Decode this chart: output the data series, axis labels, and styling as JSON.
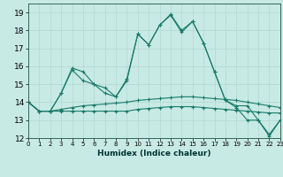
{
  "title": "",
  "xlabel": "Humidex (Indice chaleur)",
  "xlim": [
    0,
    23
  ],
  "ylim": [
    12,
    19.5
  ],
  "yticks": [
    12,
    13,
    14,
    15,
    16,
    17,
    18,
    19
  ],
  "xticks": [
    0,
    1,
    2,
    3,
    4,
    5,
    6,
    7,
    8,
    9,
    10,
    11,
    12,
    13,
    14,
    15,
    16,
    17,
    18,
    19,
    20,
    21,
    22,
    23
  ],
  "background_color": "#c8eae4",
  "grid_color": "#b0d8d0",
  "line_color": "#1a7a6a",
  "series": [
    [
      14.0,
      13.5,
      13.5,
      14.5,
      15.9,
      15.7,
      15.0,
      14.8,
      14.3,
      15.3,
      17.8,
      17.2,
      18.3,
      18.85,
      17.9,
      18.5,
      17.3,
      15.7,
      14.1,
      13.7,
      13.0,
      13.0,
      12.1,
      13.0
    ],
    [
      14.0,
      13.5,
      13.5,
      14.5,
      15.8,
      15.2,
      15.0,
      14.5,
      14.3,
      15.2,
      17.8,
      17.2,
      18.3,
      18.9,
      18.0,
      18.5,
      17.3,
      15.7,
      14.1,
      13.8,
      13.8,
      13.0,
      12.2,
      13.0
    ],
    [
      14.0,
      13.5,
      13.5,
      13.5,
      13.5,
      13.5,
      13.5,
      13.5,
      13.5,
      13.5,
      13.6,
      13.65,
      13.7,
      13.75,
      13.75,
      13.75,
      13.7,
      13.65,
      13.6,
      13.55,
      13.5,
      13.45,
      13.4,
      13.4
    ],
    [
      14.0,
      13.5,
      13.5,
      13.6,
      13.7,
      13.8,
      13.85,
      13.9,
      13.95,
      14.0,
      14.1,
      14.15,
      14.2,
      14.25,
      14.3,
      14.3,
      14.25,
      14.2,
      14.15,
      14.1,
      14.0,
      13.9,
      13.8,
      13.7
    ]
  ]
}
